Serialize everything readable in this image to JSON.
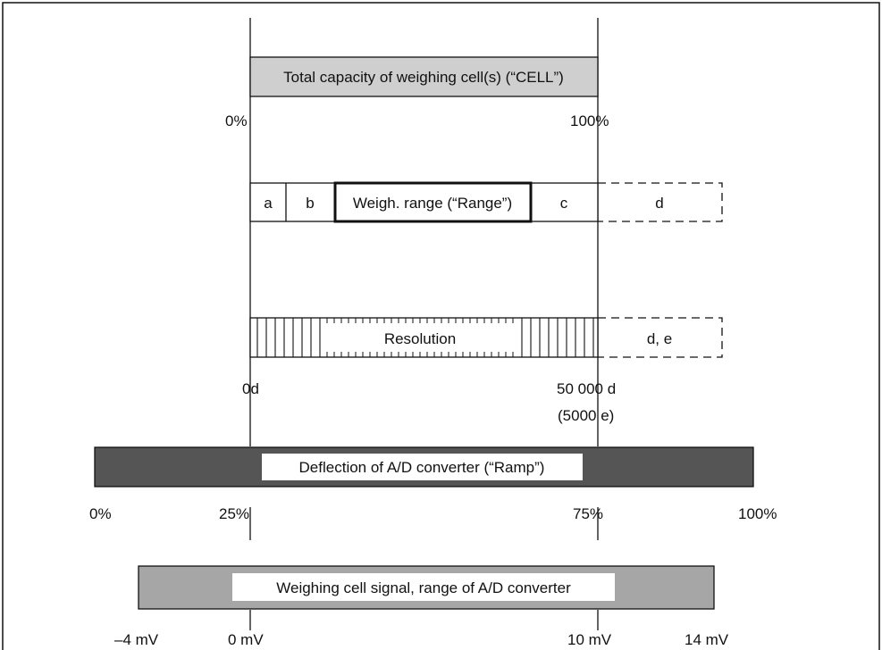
{
  "colors": {
    "cell_fill": "#cfcfcf",
    "ramp_fill": "#555555",
    "signal_fill": "#a6a6a6",
    "line": "#111111",
    "label_box": "#ffffff"
  },
  "cell_bar": {
    "label": "Total capacity of weighing cell(s) (“CELL”)",
    "start_label": "0%",
    "end_label": "100%"
  },
  "range_bar": {
    "segments": [
      "a",
      "b",
      "Weigh. range (“Range”)",
      "c",
      "d"
    ]
  },
  "resolution_bar": {
    "label": "Resolution",
    "overflow_label": "d, e",
    "start_label": "0d",
    "end_label": "50 000 d",
    "end_sub_label": "(5000 e)"
  },
  "ramp_bar": {
    "label": "Deflection of A/D converter (“Ramp”)",
    "ticks": [
      "0%",
      "25%",
      "75%",
      "100%"
    ]
  },
  "signal_bar": {
    "label": "Weighing cell signal, range of A/D converter",
    "ticks": [
      "–4 mV",
      "0 mV",
      "10 mV",
      "14 mV"
    ]
  }
}
